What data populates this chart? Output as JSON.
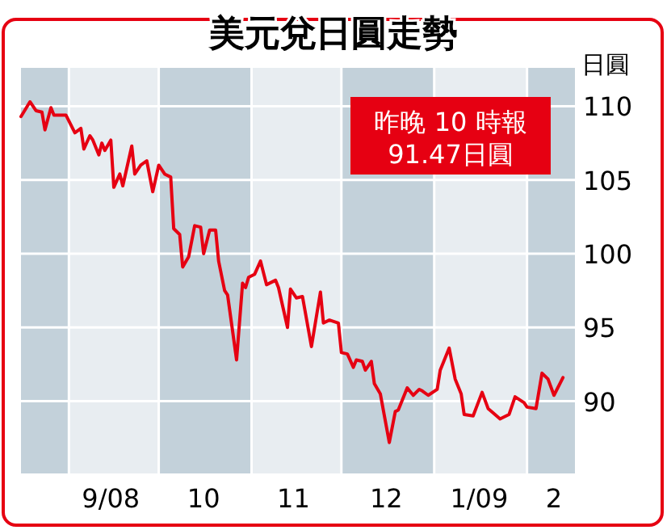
{
  "chart_data": {
    "type": "line",
    "title": "美元兌日圓走勢",
    "ylabel": "日圓",
    "annotations": [
      "昨晚 10 時報\n91.47日圓"
    ],
    "xlim": [
      "2008-08-16",
      "2009-02-17"
    ],
    "ylim": [
      85.1,
      112.6
    ],
    "xticks": [
      {
        "value": "2008-09-15",
        "label": "9/08"
      },
      {
        "value": "2008-10-16",
        "label": "10"
      },
      {
        "value": "2008-11-15",
        "label": "11"
      },
      {
        "value": "2008-12-16",
        "label": "12"
      },
      {
        "value": "2009-01-16",
        "label": "1/09"
      },
      {
        "value": "2009-02-10",
        "label": "2"
      }
    ],
    "yticks": [
      90,
      95,
      100,
      105,
      110
    ],
    "grid": "y",
    "bands": [
      {
        "axis": "x",
        "from": "2008-08-16",
        "to": "2008-09-01",
        "label": null,
        "color": "#c3d1da"
      },
      {
        "axis": "x",
        "from": "2008-10-01",
        "to": "2008-11-01",
        "label": null,
        "color": "#c3d1da"
      },
      {
        "axis": "x",
        "from": "2008-12-01",
        "to": "2009-01-01",
        "label": null,
        "color": "#c3d1da"
      },
      {
        "axis": "x",
        "from": "2009-02-01",
        "to": "2009-02-17",
        "label": null,
        "color": "#c3d1da"
      }
    ],
    "series": [
      {
        "color": "#e60012",
        "x": [
          "2008-08-16",
          "2008-08-19",
          "2008-08-21",
          "2008-08-23",
          "2008-08-24",
          "2008-08-26",
          "2008-08-27",
          "2008-08-30",
          "2008-08-31",
          "2008-09-03",
          "2008-09-05",
          "2008-09-06",
          "2008-09-08",
          "2008-09-09",
          "2008-09-11",
          "2008-09-12",
          "2008-09-13",
          "2008-09-15",
          "2008-09-16",
          "2008-09-18",
          "2008-09-19",
          "2008-09-22",
          "2008-09-23",
          "2008-09-25",
          "2008-09-27",
          "2008-09-29",
          "2008-10-01",
          "2008-10-03",
          "2008-10-05",
          "2008-10-06",
          "2008-10-08",
          "2008-10-09",
          "2008-10-11",
          "2008-10-13",
          "2008-10-15",
          "2008-10-16",
          "2008-10-18",
          "2008-10-20",
          "2008-10-21",
          "2008-10-23",
          "2008-10-24",
          "2008-10-27",
          "2008-10-29",
          "2008-10-30",
          "2008-10-31",
          "2008-11-02",
          "2008-11-04",
          "2008-11-06",
          "2008-11-09",
          "2008-11-10",
          "2008-11-13",
          "2008-11-14",
          "2008-11-16",
          "2008-11-18",
          "2008-11-21",
          "2008-11-24",
          "2008-11-25",
          "2008-11-27",
          "2008-11-30",
          "2008-12-01",
          "2008-12-03",
          "2008-12-05",
          "2008-12-06",
          "2008-12-08",
          "2008-12-09",
          "2008-12-11",
          "2008-12-12",
          "2008-12-14",
          "2008-12-17",
          "2008-12-19",
          "2008-12-20",
          "2008-12-23",
          "2008-12-25",
          "2008-12-27",
          "2008-12-28",
          "2008-12-30",
          "2009-01-02",
          "2009-01-03",
          "2009-01-06",
          "2009-01-08",
          "2009-01-10",
          "2009-01-11",
          "2009-01-14",
          "2009-01-17",
          "2009-01-19",
          "2009-01-23",
          "2009-01-26",
          "2009-01-28",
          "2009-01-31",
          "2009-02-01",
          "2009-02-04",
          "2009-02-06",
          "2009-02-08",
          "2009-02-10",
          "2009-02-13"
        ],
        "values": [
          109.3,
          110.3,
          109.7,
          109.6,
          108.4,
          109.9,
          109.4,
          109.4,
          109.4,
          108.2,
          108.5,
          107.1,
          108.0,
          107.7,
          106.7,
          107.5,
          107.0,
          107.7,
          104.5,
          105.4,
          104.6,
          107.3,
          105.4,
          106.0,
          106.3,
          104.2,
          106.0,
          105.4,
          105.2,
          101.7,
          101.3,
          99.1,
          99.8,
          101.9,
          101.8,
          100.0,
          101.6,
          101.6,
          99.5,
          97.5,
          97.2,
          92.8,
          98.0,
          97.7,
          98.4,
          98.6,
          99.5,
          97.9,
          98.2,
          97.7,
          95.0,
          97.6,
          97.0,
          97.1,
          93.7,
          97.4,
          95.3,
          95.5,
          95.3,
          93.3,
          93.2,
          92.3,
          92.8,
          92.7,
          92.1,
          92.7,
          91.2,
          90.5,
          87.2,
          89.3,
          89.4,
          90.9,
          90.4,
          90.8,
          90.7,
          90.4,
          90.8,
          92.1,
          93.6,
          91.5,
          90.5,
          89.1,
          89.0,
          90.6,
          89.5,
          88.8,
          89.1,
          90.3,
          89.9,
          89.6,
          89.5,
          91.9,
          91.5,
          90.4,
          91.6
        ]
      }
    ]
  }
}
